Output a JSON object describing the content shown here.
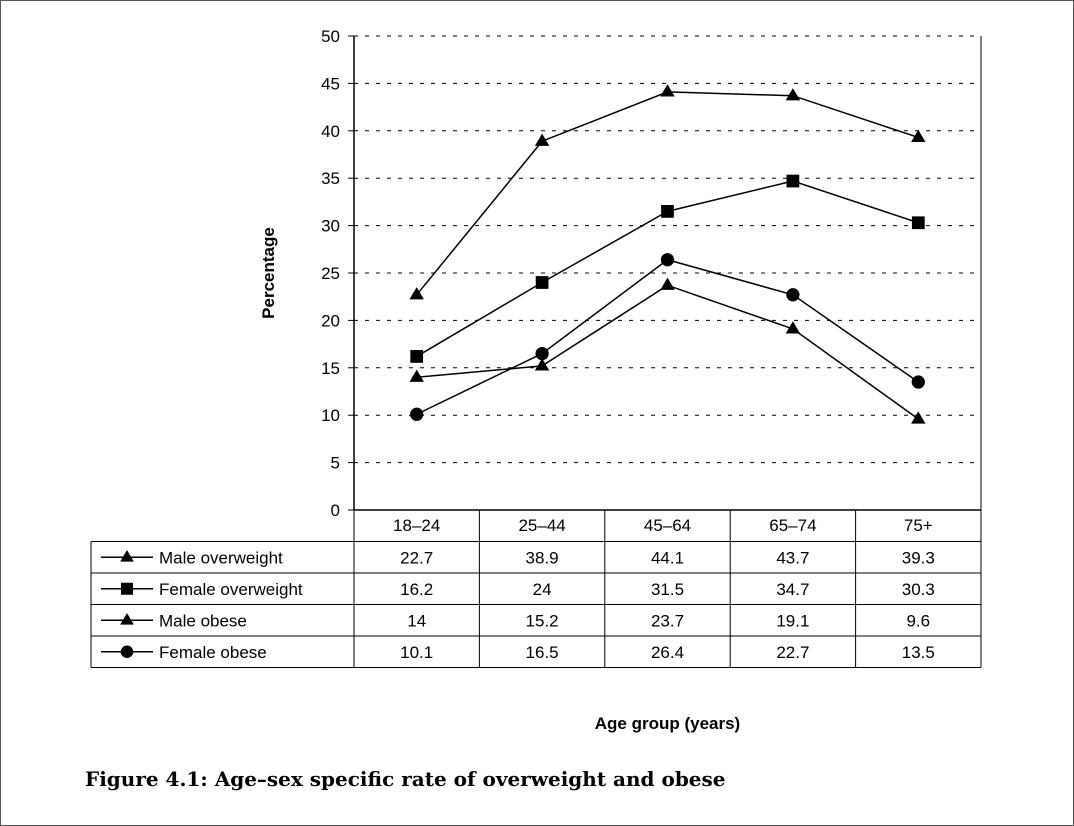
{
  "figure": {
    "caption": "Figure 4.1: Age–sex specific rate of overweight and obese"
  },
  "chart_data": {
    "type": "line",
    "title": "",
    "ylabel": "Percentage",
    "xlabel": "Age group (years)",
    "ylim": [
      0,
      50
    ],
    "yticks": [
      0,
      5,
      10,
      15,
      20,
      25,
      30,
      35,
      40,
      45,
      50
    ],
    "grid": "horizontal-dashed",
    "legend": "data-table-below",
    "categories": [
      "18–24",
      "25–44",
      "45–64",
      "65–74",
      "75+"
    ],
    "series": [
      {
        "name": "Male overweight",
        "marker": "triangle",
        "color": "#000000",
        "values": [
          22.7,
          38.9,
          44.1,
          43.7,
          39.3
        ]
      },
      {
        "name": "Female overweight",
        "marker": "square",
        "color": "#000000",
        "values": [
          16.2,
          24,
          31.5,
          34.7,
          30.3
        ]
      },
      {
        "name": "Male obese",
        "marker": "triangle",
        "color": "#000000",
        "values": [
          14,
          15.2,
          23.7,
          19.1,
          9.6
        ]
      },
      {
        "name": "Female obese",
        "marker": "circle",
        "color": "#000000",
        "values": [
          10.1,
          16.5,
          26.4,
          22.7,
          13.5
        ]
      }
    ]
  }
}
